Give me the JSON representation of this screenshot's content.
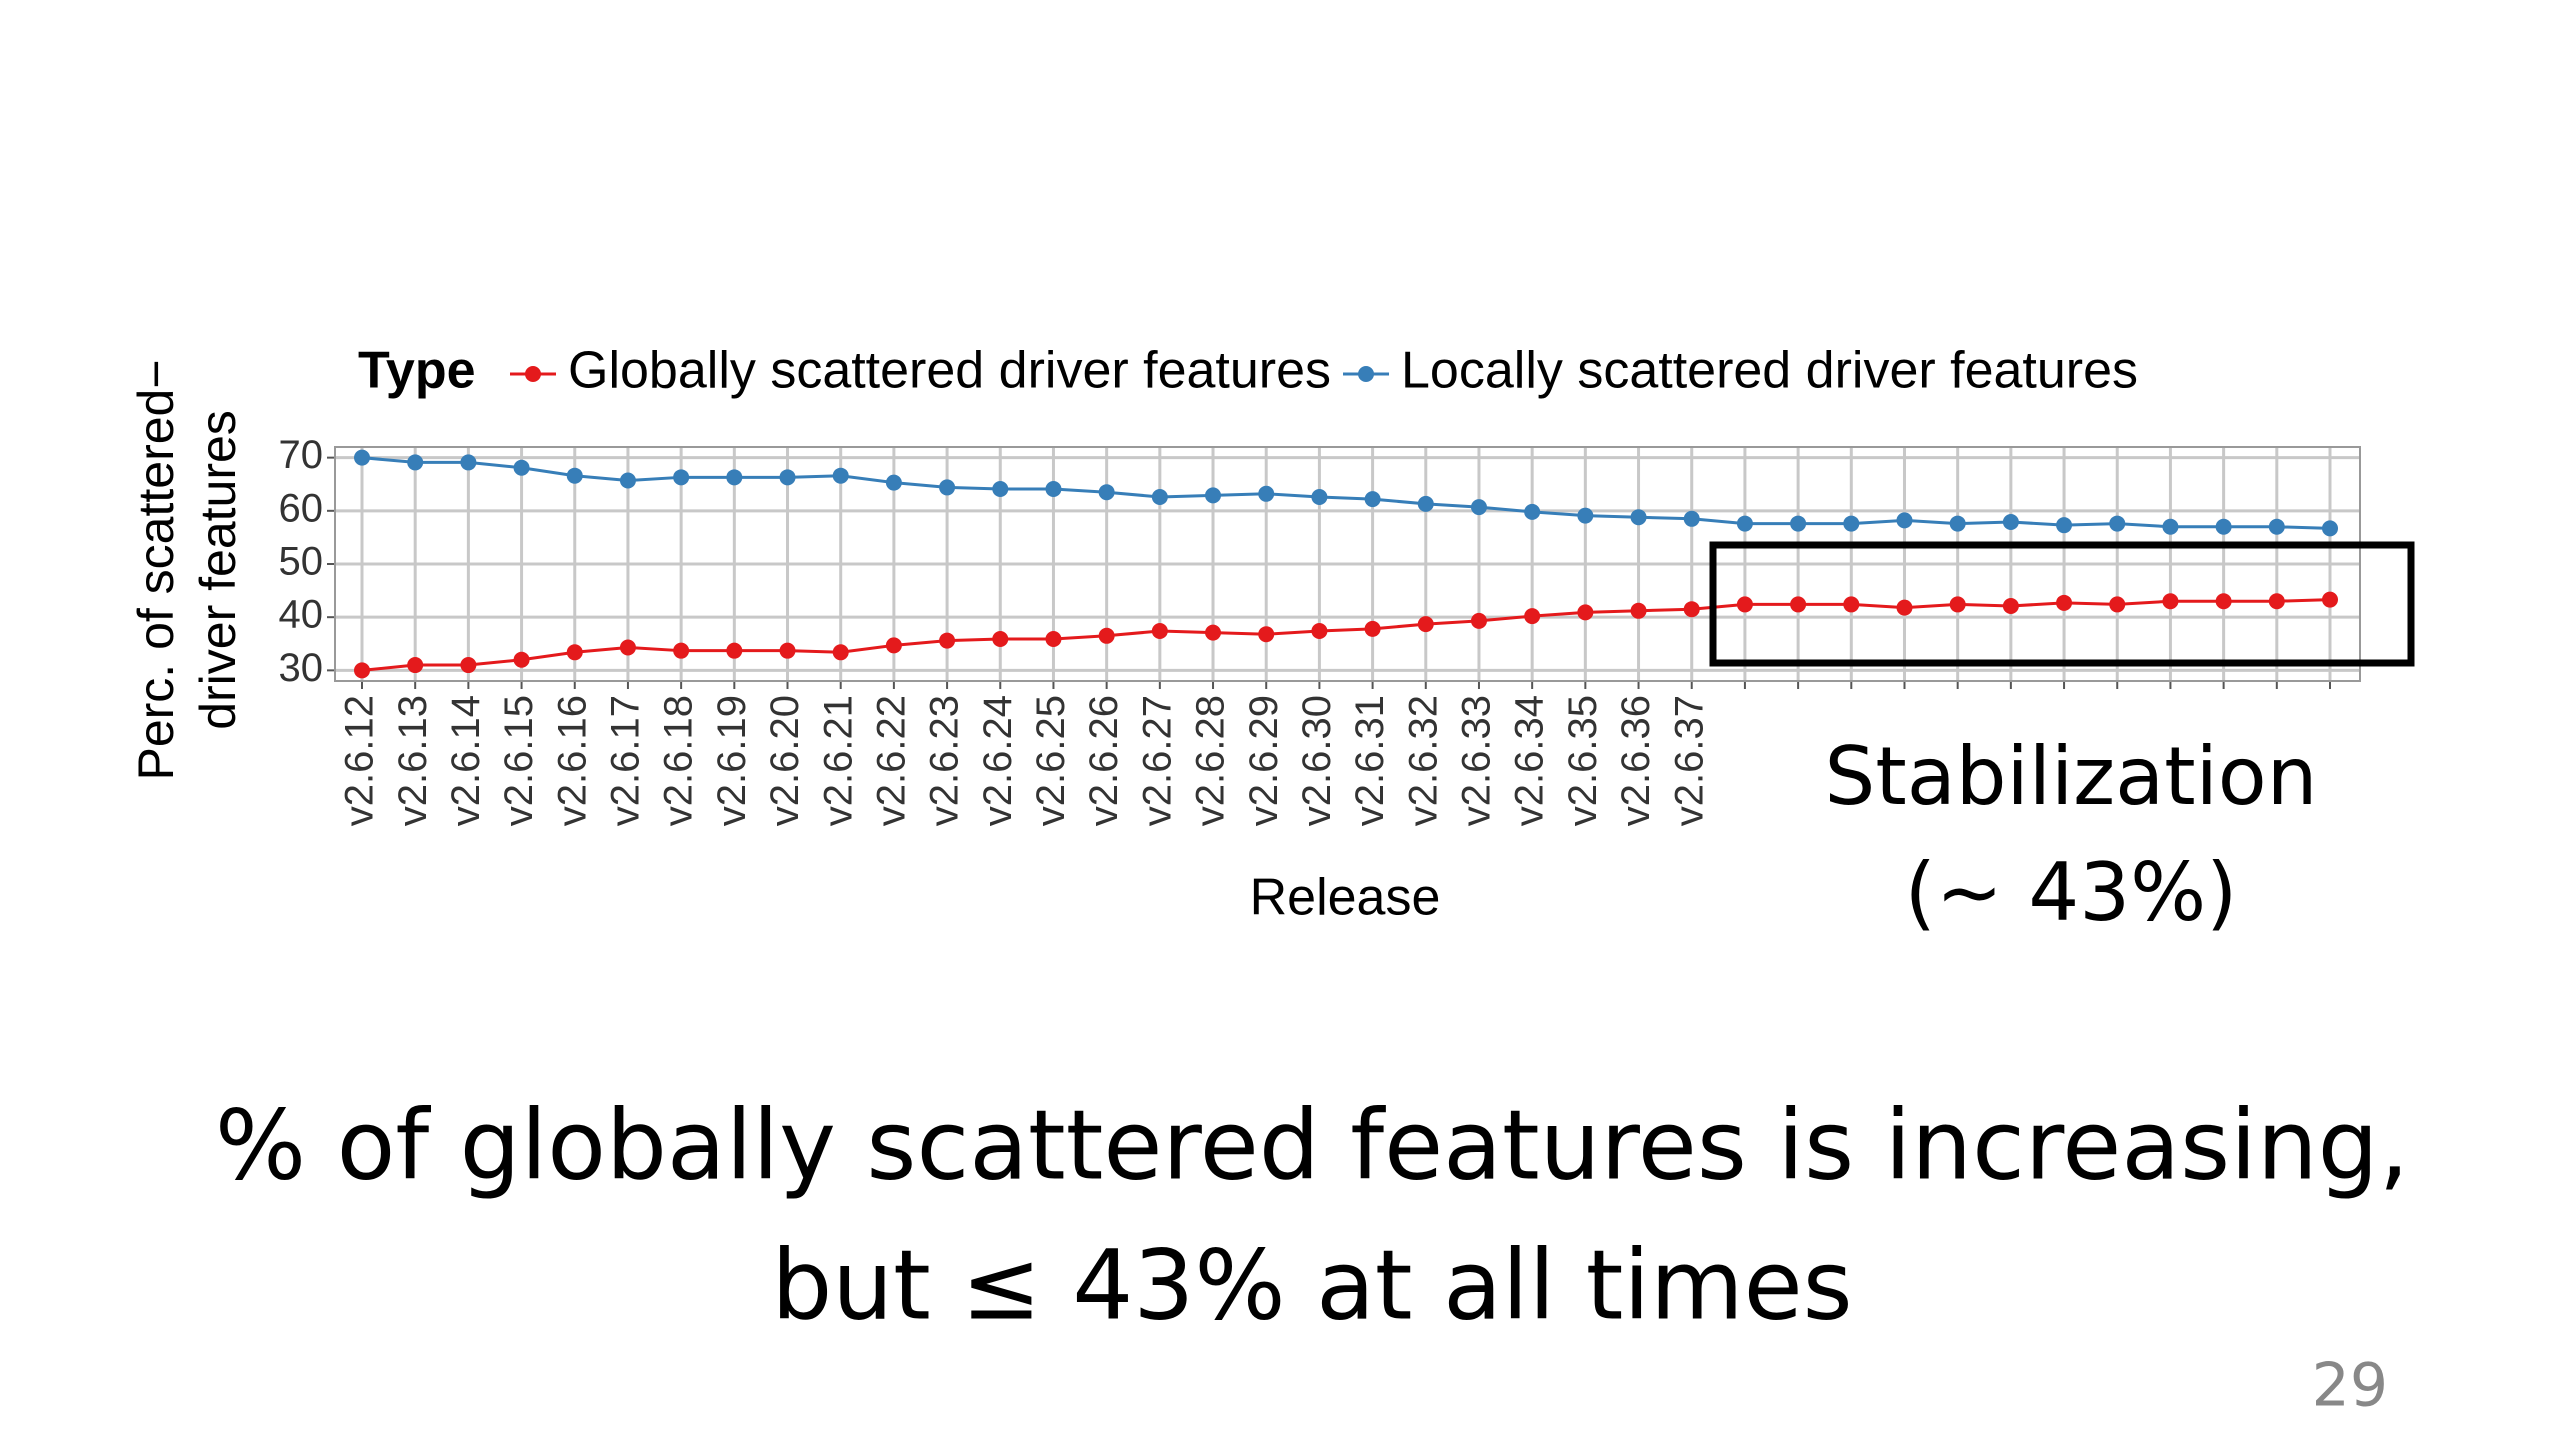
{
  "chart_data": {
    "type": "line",
    "legend_title": "Type",
    "xlabel": "Release",
    "ylabel": [
      "Perc. of scattered−",
      "driver features"
    ],
    "categories": [
      "v2.6.12",
      "v2.6.13",
      "v2.6.14",
      "v2.6.15",
      "v2.6.16",
      "v2.6.17",
      "v2.6.18",
      "v2.6.19",
      "v2.6.20",
      "v2.6.21",
      "v2.6.22",
      "v2.6.23",
      "v2.6.24",
      "v2.6.25",
      "v2.6.26",
      "v2.6.27",
      "v2.6.28",
      "v2.6.29",
      "v2.6.30",
      "v2.6.31",
      "v2.6.32",
      "v2.6.33",
      "v2.6.34",
      "v2.6.35",
      "v2.6.36",
      "v2.6.37",
      null,
      null,
      null,
      null,
      null,
      null,
      null,
      null,
      null,
      null,
      null,
      null
    ],
    "series": [
      {
        "name": "Globally scattered driver features",
        "color": "#e41a1c",
        "values": [
          30,
          31,
          31,
          32,
          33.4,
          34.3,
          33.7,
          33.7,
          33.7,
          33.4,
          34.7,
          35.6,
          35.9,
          35.9,
          36.5,
          37.4,
          37.1,
          36.8,
          37.4,
          37.8,
          38.7,
          39.3,
          40.2,
          40.9,
          41.2,
          41.5,
          42.4,
          42.4,
          42.4,
          41.8,
          42.4,
          42.1,
          42.7,
          42.4,
          43,
          43,
          43,
          43.3
        ]
      },
      {
        "name": "Locally scattered driver features",
        "color": "#377eb8",
        "values": [
          70,
          69.1,
          69.1,
          68.1,
          66.6,
          65.7,
          66.3,
          66.3,
          66.3,
          66.6,
          65.3,
          64.4,
          64.1,
          64.1,
          63.5,
          62.6,
          62.9,
          63.2,
          62.6,
          62.2,
          61.3,
          60.7,
          59.8,
          59.1,
          58.8,
          58.5,
          57.6,
          57.6,
          57.6,
          58.2,
          57.6,
          57.9,
          57.3,
          57.6,
          57,
          57,
          57,
          56.7
        ]
      }
    ],
    "ylim": [
      28,
      72
    ],
    "yticks": [
      30,
      40,
      50,
      60,
      70
    ],
    "grid": true,
    "legend": "top",
    "annotation": [
      "Stabilization",
      "(~ 43%)"
    ]
  },
  "slide": {
    "caption": [
      "% of globally scattered features is increasing,",
      "but ≤ 43% at all times"
    ],
    "page_number": "29"
  }
}
